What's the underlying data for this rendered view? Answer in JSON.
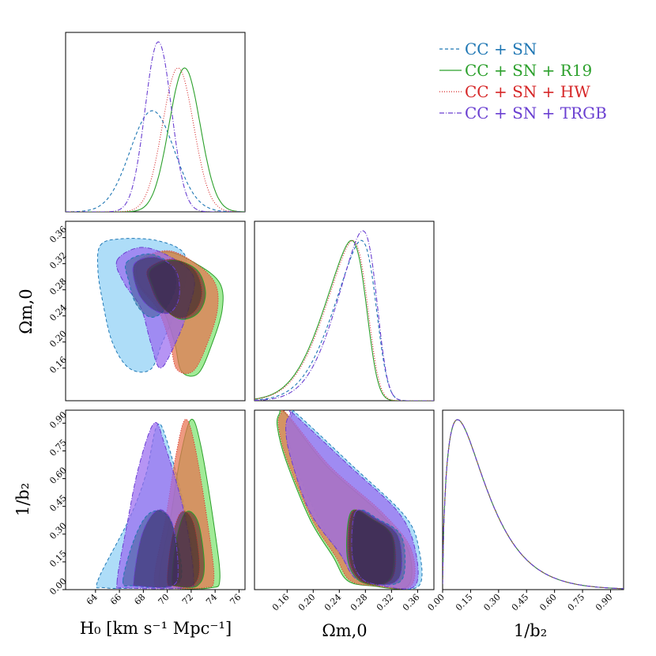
{
  "chart_data": {
    "type": "corner",
    "parameters": [
      {
        "key": "H0",
        "label": "H₀ [km s⁻¹ Mpc⁻¹]",
        "range": [
          61.5,
          76.5
        ],
        "ticks": [
          64,
          66,
          68,
          70,
          72,
          74,
          76
        ],
        "tick_labels": [
          "64",
          "66",
          "68",
          "70",
          "72",
          "74",
          "76"
        ]
      },
      {
        "key": "Om",
        "label": "Ωm,0",
        "range": [
          0.11,
          0.385
        ],
        "ticks": [
          0.16,
          0.2,
          0.24,
          0.28,
          0.32,
          0.36
        ],
        "tick_labels": [
          "0.16",
          "0.20",
          "0.24",
          "0.28",
          "0.32",
          "0.36"
        ]
      },
      {
        "key": "b2",
        "label": "1/b₂",
        "range": [
          0.0,
          0.97
        ],
        "ticks": [
          0.0,
          0.15,
          0.3,
          0.45,
          0.6,
          0.75,
          0.9
        ],
        "tick_labels": [
          "0.00",
          "0.15",
          "0.30",
          "0.45",
          "0.60",
          "0.75",
          "0.90"
        ]
      }
    ],
    "series": [
      {
        "name": "CC + SN",
        "color": "#1f77b4",
        "fill": "#8fd0f5",
        "fill_inner": "#3d5e96",
        "dash": "4,3",
        "H0": {
          "mean": 68.75,
          "sigma": 1.85
        },
        "Om": {
          "mean": 0.297,
          "sigma": 0.035,
          "skew": -4
        },
        "b2": {
          "peak": 0.08
        },
        "H0_Om": {
          "outer": [
            [
              64.4,
              0.348
            ],
            [
              66,
              0.358
            ],
            [
              69,
              0.356
            ],
            [
              71.3,
              0.338
            ],
            [
              71.6,
              0.3
            ],
            [
              70.8,
              0.25
            ],
            [
              69.6,
              0.2
            ],
            [
              68.6,
              0.158
            ],
            [
              66.8,
              0.16
            ],
            [
              65.4,
              0.2
            ],
            [
              64.6,
              0.262
            ],
            [
              64.2,
              0.31
            ]
          ],
          "inner": [
            [
              66.6,
              0.322
            ],
            [
              68.5,
              0.335
            ],
            [
              70.3,
              0.318
            ],
            [
              70.7,
              0.285
            ],
            [
              69.8,
              0.25
            ],
            [
              68.6,
              0.238
            ],
            [
              67.4,
              0.258
            ],
            [
              66.8,
              0.292
            ]
          ]
        },
        "H0_b2": {
          "outer": [
            [
              64.2,
              0.05
            ],
            [
              66.8,
              0.38
            ],
            [
              68.2,
              0.62
            ],
            [
              69.1,
              0.88
            ],
            [
              69.9,
              0.82
            ],
            [
              71.6,
              0.4
            ],
            [
              72.2,
              0.12
            ],
            [
              71.6,
              0.03
            ],
            [
              68,
              0.01
            ],
            [
              64.8,
              0.01
            ]
          ],
          "inner": [
            [
              66.3,
              0.05
            ],
            [
              67.4,
              0.3
            ],
            [
              68.7,
              0.42
            ],
            [
              70.2,
              0.38
            ],
            [
              71.2,
              0.12
            ],
            [
              70.5,
              0.02
            ],
            [
              67.2,
              0.02
            ]
          ]
        },
        "Om_b2": {
          "outer": [
            [
              0.168,
              0.95
            ],
            [
              0.175,
              0.95
            ],
            [
              0.26,
              0.67
            ],
            [
              0.34,
              0.4
            ],
            [
              0.362,
              0.22
            ],
            [
              0.362,
              0.02
            ],
            [
              0.31,
              0.02
            ],
            [
              0.268,
              0.08
            ],
            [
              0.222,
              0.29
            ],
            [
              0.175,
              0.65
            ],
            [
              0.162,
              0.85
            ]
          ],
          "inner": [
            [
              0.268,
              0.42
            ],
            [
              0.3,
              0.38
            ],
            [
              0.335,
              0.29
            ],
            [
              0.34,
              0.1
            ],
            [
              0.325,
              0.03
            ],
            [
              0.28,
              0.05
            ],
            [
              0.262,
              0.18
            ]
          ]
        }
      },
      {
        "name": "CC + SN + R19",
        "color": "#2ca02c",
        "fill": "#7de36f",
        "fill_inner": "#3b2e2c",
        "dash": "",
        "H0": {
          "mean": 71.45,
          "sigma": 1.3
        },
        "Om": {
          "mean": 0.282,
          "sigma": 0.035,
          "skew": -4
        },
        "b2": {
          "peak": 0.08
        },
        "H0_Om": {
          "outer": [
            [
              67.6,
              0.32
            ],
            [
              70,
              0.338
            ],
            [
              72.6,
              0.318
            ],
            [
              74.4,
              0.29
            ],
            [
              74.6,
              0.25
            ],
            [
              73.8,
              0.2
            ],
            [
              72.6,
              0.152
            ],
            [
              71.2,
              0.155
            ],
            [
              70.6,
              0.2
            ],
            [
              69.6,
              0.25
            ],
            [
              67.8,
              0.285
            ]
          ],
          "inner": [
            [
              68.6,
              0.31
            ],
            [
              70.5,
              0.325
            ],
            [
              72.5,
              0.31
            ],
            [
              73.2,
              0.275
            ],
            [
              72.6,
              0.245
            ],
            [
              71.1,
              0.235
            ],
            [
              69.6,
              0.255
            ],
            [
              68.8,
              0.285
            ]
          ]
        },
        "H0_b2": {
          "outer": [
            [
              69.3,
              0.05
            ],
            [
              70.3,
              0.4
            ],
            [
              71.1,
              0.72
            ],
            [
              72.0,
              0.92
            ],
            [
              72.8,
              0.78
            ],
            [
              73.9,
              0.35
            ],
            [
              74.4,
              0.06
            ],
            [
              73.6,
              0.01
            ],
            [
              70.4,
              0.01
            ]
          ],
          "inner": [
            [
              70.4,
              0.05
            ],
            [
              70.8,
              0.28
            ],
            [
              71.6,
              0.42
            ],
            [
              72.6,
              0.36
            ],
            [
              73.1,
              0.12
            ],
            [
              72.5,
              0.02
            ],
            [
              70.9,
              0.02
            ]
          ]
        },
        "Om_b2": {
          "outer": [
            [
              0.148,
              0.95
            ],
            [
              0.158,
              0.95
            ],
            [
              0.22,
              0.67
            ],
            [
              0.3,
              0.42
            ],
            [
              0.345,
              0.22
            ],
            [
              0.345,
              0.02
            ],
            [
              0.29,
              0.02
            ],
            [
              0.252,
              0.05
            ],
            [
              0.23,
              0.18
            ],
            [
              0.195,
              0.38
            ],
            [
              0.158,
              0.7
            ],
            [
              0.145,
              0.88
            ]
          ],
          "inner": [
            [
              0.258,
              0.42
            ],
            [
              0.29,
              0.38
            ],
            [
              0.32,
              0.29
            ],
            [
              0.322,
              0.1
            ],
            [
              0.305,
              0.03
            ],
            [
              0.27,
              0.05
            ],
            [
              0.252,
              0.18
            ]
          ]
        }
      },
      {
        "name": "CC + SN + HW",
        "color": "#d62728",
        "fill": "#e8714f",
        "fill_inner": "#4a2d2e",
        "dash": "1,2",
        "H0": {
          "mean": 70.9,
          "sigma": 1.3
        },
        "Om": {
          "mean": 0.284,
          "sigma": 0.035,
          "skew": -4
        },
        "b2": {
          "peak": 0.08
        },
        "H0_Om": {
          "outer": [
            [
              67.4,
              0.322
            ],
            [
              70,
              0.34
            ],
            [
              72.4,
              0.32
            ],
            [
              74,
              0.29
            ],
            [
              74.2,
              0.25
            ],
            [
              73.4,
              0.2
            ],
            [
              72.2,
              0.156
            ],
            [
              70.8,
              0.158
            ],
            [
              70.2,
              0.2
            ],
            [
              69.2,
              0.25
            ],
            [
              67.6,
              0.287
            ]
          ],
          "inner": [
            [
              68.4,
              0.312
            ],
            [
              70.3,
              0.327
            ],
            [
              72.2,
              0.312
            ],
            [
              72.9,
              0.277
            ],
            [
              72.3,
              0.247
            ],
            [
              70.9,
              0.237
            ],
            [
              69.4,
              0.257
            ],
            [
              68.6,
              0.287
            ]
          ]
        },
        "H0_b2": {
          "outer": [
            [
              68.9,
              0.05
            ],
            [
              69.9,
              0.4
            ],
            [
              70.7,
              0.72
            ],
            [
              71.5,
              0.92
            ],
            [
              72.3,
              0.78
            ],
            [
              73.4,
              0.35
            ],
            [
              73.9,
              0.06
            ],
            [
              73.1,
              0.01
            ],
            [
              70,
              0.01
            ]
          ],
          "inner": [
            [
              70,
              0.05
            ],
            [
              70.4,
              0.28
            ],
            [
              71.2,
              0.42
            ],
            [
              72.2,
              0.36
            ],
            [
              72.7,
              0.12
            ],
            [
              72.1,
              0.02
            ],
            [
              70.5,
              0.02
            ]
          ]
        },
        "Om_b2": {
          "outer": [
            [
              0.15,
              0.95
            ],
            [
              0.16,
              0.95
            ],
            [
              0.225,
              0.67
            ],
            [
              0.305,
              0.42
            ],
            [
              0.35,
              0.22
            ],
            [
              0.35,
              0.02
            ],
            [
              0.295,
              0.02
            ],
            [
              0.256,
              0.05
            ],
            [
              0.234,
              0.18
            ],
            [
              0.198,
              0.38
            ],
            [
              0.16,
              0.7
            ],
            [
              0.147,
              0.88
            ]
          ],
          "inner": [
            [
              0.26,
              0.42
            ],
            [
              0.292,
              0.38
            ],
            [
              0.322,
              0.29
            ],
            [
              0.325,
              0.1
            ],
            [
              0.308,
              0.03
            ],
            [
              0.272,
              0.05
            ],
            [
              0.255,
              0.18
            ]
          ]
        }
      },
      {
        "name": "CC + SN + TRGB",
        "color": "#6a3fd1",
        "fill": "#9a6bf0",
        "fill_inner": "#3a2a6a",
        "dash": "6,2,1,2",
        "H0": {
          "mean": 69.25,
          "sigma": 1.1
        },
        "Om": {
          "mean": 0.298,
          "sigma": 0.033,
          "skew": -4
        },
        "b2": {
          "peak": 0.08
        },
        "H0_Om": {
          "outer": [
            [
              65.8,
              0.325
            ],
            [
              67.8,
              0.345
            ],
            [
              70.3,
              0.33
            ],
            [
              72.2,
              0.3
            ],
            [
              71.8,
              0.252
            ],
            [
              70.6,
              0.195
            ],
            [
              69.4,
              0.16
            ],
            [
              68.6,
              0.2
            ],
            [
              67.8,
              0.252
            ],
            [
              66.4,
              0.29
            ]
          ],
          "inner": [
            [
              67.2,
              0.318
            ],
            [
              69,
              0.33
            ],
            [
              70.7,
              0.31
            ],
            [
              71,
              0.27
            ],
            [
              70.2,
              0.245
            ],
            [
              68.8,
              0.25
            ],
            [
              67.6,
              0.275
            ]
          ]
        },
        "H0_b2": {
          "outer": [
            [
              65.8,
              0.04
            ],
            [
              66.6,
              0.34
            ],
            [
              67.6,
              0.66
            ],
            [
              68.9,
              0.9
            ],
            [
              69.8,
              0.78
            ],
            [
              71.4,
              0.42
            ],
            [
              72.2,
              0.06
            ],
            [
              71.4,
              0.01
            ],
            [
              66.4,
              0.01
            ]
          ],
          "inner": [
            [
              67.2,
              0.05
            ],
            [
              67.9,
              0.3
            ],
            [
              69.2,
              0.43
            ],
            [
              70.4,
              0.36
            ],
            [
              70.9,
              0.12
            ],
            [
              70.4,
              0.02
            ],
            [
              67.6,
              0.02
            ]
          ]
        },
        "Om_b2": {
          "outer": [
            [
              0.165,
              0.95
            ],
            [
              0.17,
              0.95
            ],
            [
              0.255,
              0.67
            ],
            [
              0.33,
              0.42
            ],
            [
              0.356,
              0.22
            ],
            [
              0.356,
              0.02
            ],
            [
              0.305,
              0.02
            ],
            [
              0.265,
              0.06
            ],
            [
              0.24,
              0.2
            ],
            [
              0.195,
              0.42
            ],
            [
              0.165,
              0.72
            ],
            [
              0.158,
              0.88
            ]
          ],
          "inner": [
            [
              0.265,
              0.42
            ],
            [
              0.298,
              0.38
            ],
            [
              0.33,
              0.29
            ],
            [
              0.335,
              0.1
            ],
            [
              0.318,
              0.03
            ],
            [
              0.278,
              0.05
            ],
            [
              0.26,
              0.18
            ]
          ]
        }
      }
    ],
    "legend": {
      "placement": "top-right"
    }
  }
}
